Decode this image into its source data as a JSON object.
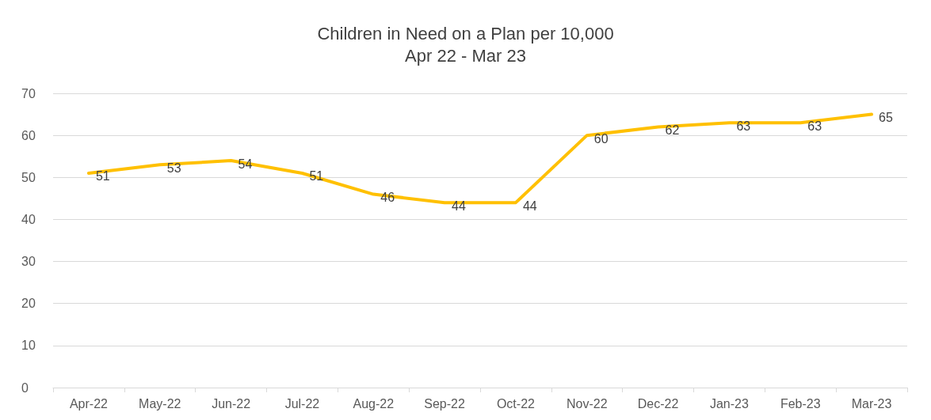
{
  "chart_data": {
    "type": "line",
    "title": "Children in Need on a Plan per 10,000",
    "subtitle": "Apr 22 - Mar 23",
    "categories": [
      "Apr-22",
      "May-22",
      "Jun-22",
      "Jul-22",
      "Aug-22",
      "Sep-22",
      "Oct-22",
      "Nov-22",
      "Dec-22",
      "Jan-23",
      "Feb-23",
      "Mar-23"
    ],
    "series": [
      {
        "color": "#ffc000",
        "values": [
          51,
          53,
          54,
          51,
          46,
          44,
          44,
          60,
          62,
          63,
          63,
          65
        ]
      }
    ],
    "ylim": [
      0,
      70
    ],
    "yticks": [
      0,
      10,
      20,
      30,
      40,
      50,
      60,
      70
    ],
    "grid": "y",
    "data_labels": true,
    "marker": "none",
    "line_style": "solid"
  }
}
